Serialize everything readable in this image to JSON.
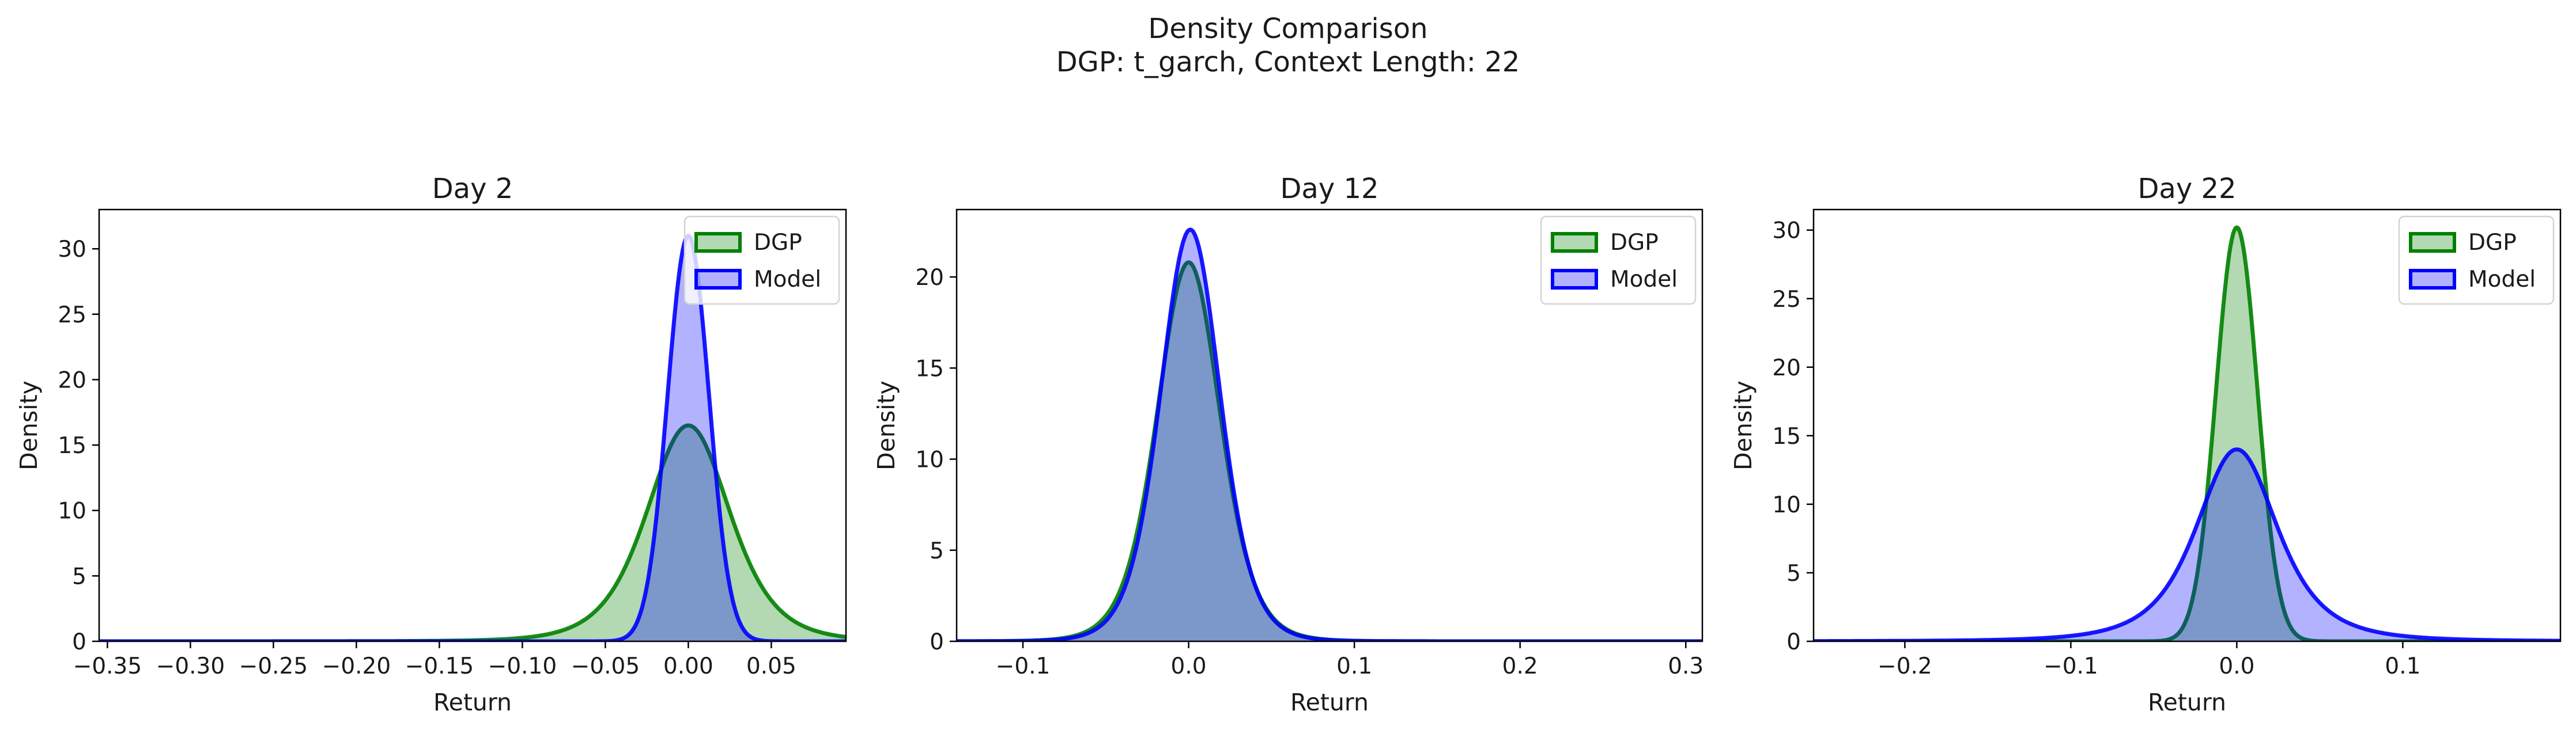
{
  "figure": {
    "title_line1": "Density Comparison",
    "title_line2": "DGP: t_garch, Context Length: 22"
  },
  "colors": {
    "dgp": "#008000",
    "model": "#0000ff"
  },
  "chart_data": [
    {
      "type": "area",
      "title": "Day 2",
      "xlabel": "Return",
      "ylabel": "Density",
      "xlim": [
        -0.355,
        0.095
      ],
      "ylim": [
        0,
        33
      ],
      "xticks": [
        -0.35,
        -0.3,
        -0.25,
        -0.2,
        -0.15,
        -0.1,
        -0.05,
        0.0,
        0.05
      ],
      "xtick_labels": [
        "−0.35",
        "−0.30",
        "−0.25",
        "−0.20",
        "−0.15",
        "−0.10",
        "−0.05",
        "0.00",
        "0.05"
      ],
      "yticks": [
        0,
        5,
        10,
        15,
        20,
        25,
        30
      ],
      "legend": "top-right",
      "series": [
        {
          "name": "DGP",
          "kind": "scaled_t",
          "loc": 0.0,
          "peak": 16.5,
          "scale": 0.026,
          "df": 5,
          "color": "#008000"
        },
        {
          "name": "Model",
          "kind": "gaussian",
          "loc": 0.0,
          "peak": 31.0,
          "scale": 0.0125,
          "color": "#0000ff"
        }
      ]
    },
    {
      "type": "area",
      "title": "Day 12",
      "xlabel": "Return",
      "ylabel": "Density",
      "xlim": [
        -0.14,
        0.31
      ],
      "ylim": [
        0,
        23.7
      ],
      "xticks": [
        -0.1,
        0.0,
        0.1,
        0.2,
        0.3
      ],
      "xtick_labels": [
        "−0.1",
        "0.0",
        "0.1",
        "0.2",
        "0.3"
      ],
      "yticks": [
        0,
        5,
        10,
        15,
        20
      ],
      "legend": "top-right",
      "series": [
        {
          "name": "DGP",
          "kind": "scaled_t",
          "loc": 0.0,
          "peak": 20.8,
          "scale": 0.0195,
          "df": 8,
          "color": "#008000"
        },
        {
          "name": "Model",
          "kind": "scaled_t",
          "loc": 0.001,
          "peak": 22.6,
          "scale": 0.0185,
          "df": 8,
          "color": "#0000ff"
        }
      ]
    },
    {
      "type": "area",
      "title": "Day 22",
      "xlabel": "Return",
      "ylabel": "Density",
      "xlim": [
        -0.255,
        0.195
      ],
      "ylim": [
        0,
        31.5
      ],
      "xticks": [
        -0.2,
        -0.1,
        0.0,
        0.1
      ],
      "xtick_labels": [
        "−0.2",
        "−0.1",
        "0.0",
        "0.1"
      ],
      "yticks": [
        0,
        5,
        10,
        15,
        20,
        25,
        30
      ],
      "legend": "top-right",
      "series": [
        {
          "name": "DGP",
          "kind": "gaussian",
          "loc": 0.0,
          "peak": 30.2,
          "scale": 0.0125,
          "color": "#008000"
        },
        {
          "name": "Model",
          "kind": "scaled_t",
          "loc": 0.0,
          "peak": 14.0,
          "scale": 0.026,
          "df": 3,
          "color": "#0000ff"
        }
      ]
    }
  ]
}
